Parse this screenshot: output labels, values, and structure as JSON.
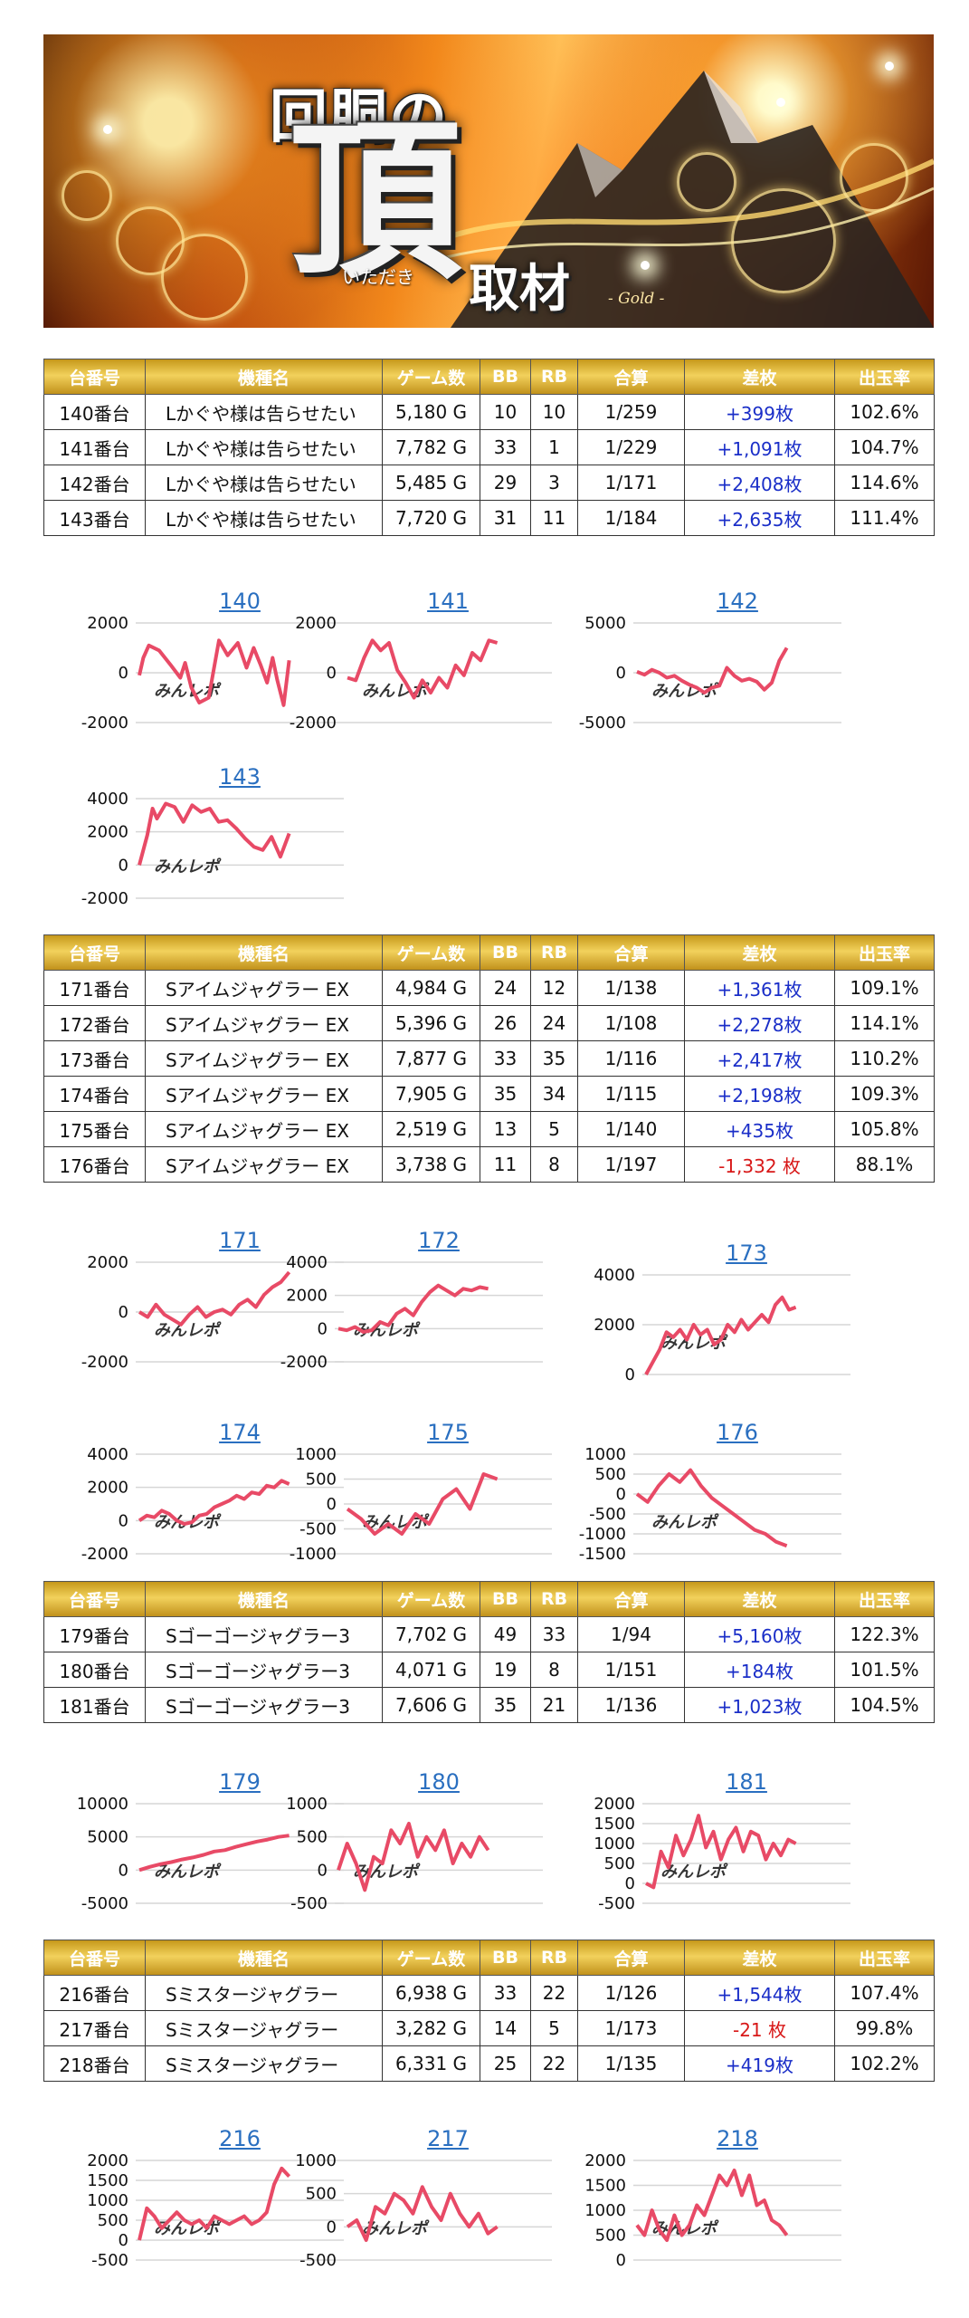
{
  "banner": {
    "line1": "回胴の",
    "main_char": "頂",
    "ruby": "いただき",
    "line2": "取材",
    "tag": "- Gold -"
  },
  "watermark": "みんレポ",
  "colors": {
    "header_gold": "#d9b43a",
    "positive": "#1a2ec8",
    "negative": "#d81818",
    "line": "#e84a66",
    "link": "#2a6fc0"
  },
  "table_headers": [
    "台番号",
    "機種名",
    "ゲーム数",
    "BB",
    "RB",
    "合算",
    "差枚",
    "出玉率"
  ],
  "groups": [
    {
      "rows": [
        {
          "no": "140番台",
          "name": "Lかぐや様は告らせたい",
          "games": "5,180 G",
          "bb": "10",
          "rb": "10",
          "total": "1/259",
          "diff": "+399枚",
          "rate": "102.6%"
        },
        {
          "no": "141番台",
          "name": "Lかぐや様は告らせたい",
          "games": "7,782 G",
          "bb": "33",
          "rb": "1",
          "total": "1/229",
          "diff": "+1,091枚",
          "rate": "104.7%"
        },
        {
          "no": "142番台",
          "name": "Lかぐや様は告らせたい",
          "games": "5,485 G",
          "bb": "29",
          "rb": "3",
          "total": "1/171",
          "diff": "+2,408枚",
          "rate": "114.6%"
        },
        {
          "no": "143番台",
          "name": "Lかぐや様は告らせたい",
          "games": "7,720 G",
          "bb": "31",
          "rb": "11",
          "total": "1/184",
          "diff": "+2,635枚",
          "rate": "111.4%"
        }
      ]
    },
    {
      "rows": [
        {
          "no": "171番台",
          "name": "Sアイムジャグラー EX",
          "games": "4,984 G",
          "bb": "24",
          "rb": "12",
          "total": "1/138",
          "diff": "+1,361枚",
          "rate": "109.1%"
        },
        {
          "no": "172番台",
          "name": "Sアイムジャグラー EX",
          "games": "5,396 G",
          "bb": "26",
          "rb": "24",
          "total": "1/108",
          "diff": "+2,278枚",
          "rate": "114.1%"
        },
        {
          "no": "173番台",
          "name": "Sアイムジャグラー EX",
          "games": "7,877 G",
          "bb": "33",
          "rb": "35",
          "total": "1/116",
          "diff": "+2,417枚",
          "rate": "110.2%"
        },
        {
          "no": "174番台",
          "name": "Sアイムジャグラー EX",
          "games": "7,905 G",
          "bb": "35",
          "rb": "34",
          "total": "1/115",
          "diff": "+2,198枚",
          "rate": "109.3%"
        },
        {
          "no": "175番台",
          "name": "Sアイムジャグラー EX",
          "games": "2,519 G",
          "bb": "13",
          "rb": "5",
          "total": "1/140",
          "diff": "+435枚",
          "rate": "105.8%"
        },
        {
          "no": "176番台",
          "name": "Sアイムジャグラー EX",
          "games": "3,738 G",
          "bb": "11",
          "rb": "8",
          "total": "1/197",
          "diff": "-1,332 枚",
          "rate": "88.1%"
        }
      ]
    },
    {
      "rows": [
        {
          "no": "179番台",
          "name": "Sゴーゴージャグラー3",
          "games": "7,702 G",
          "bb": "49",
          "rb": "33",
          "total": "1/94",
          "diff": "+5,160枚",
          "rate": "122.3%"
        },
        {
          "no": "180番台",
          "name": "Sゴーゴージャグラー3",
          "games": "4,071 G",
          "bb": "19",
          "rb": "8",
          "total": "1/151",
          "diff": "+184枚",
          "rate": "101.5%"
        },
        {
          "no": "181番台",
          "name": "Sゴーゴージャグラー3",
          "games": "7,606 G",
          "bb": "35",
          "rb": "21",
          "total": "1/136",
          "diff": "+1,023枚",
          "rate": "104.5%"
        }
      ]
    },
    {
      "rows": [
        {
          "no": "216番台",
          "name": "Sミスタージャグラー",
          "games": "6,938 G",
          "bb": "33",
          "rb": "22",
          "total": "1/126",
          "diff": "+1,544枚",
          "rate": "107.4%"
        },
        {
          "no": "217番台",
          "name": "Sミスタージャグラー",
          "games": "3,282 G",
          "bb": "14",
          "rb": "5",
          "total": "1/173",
          "diff": "-21 枚",
          "rate": "99.8%"
        },
        {
          "no": "218番台",
          "name": "Sミスタージャグラー",
          "games": "6,331 G",
          "bb": "25",
          "rb": "22",
          "total": "1/135",
          "diff": "+419枚",
          "rate": "102.2%"
        }
      ]
    }
  ],
  "chart_data": [
    {
      "type": "line",
      "title": "140",
      "ylim": [
        -2000,
        2000
      ],
      "yticks": [
        2000,
        0,
        -2000
      ],
      "grid": true,
      "x": [
        0,
        0.5,
        1.2,
        2.5,
        4,
        5.2,
        5.8,
        6.6,
        7.6,
        8.8,
        10.1,
        11.2,
        12.5,
        13.6,
        14.5,
        15.4,
        16.2,
        16.9,
        17.5,
        18.3,
        19
      ],
      "values": [
        -100,
        600,
        1100,
        900,
        300,
        -200,
        400,
        -600,
        -1200,
        -1000,
        1300,
        700,
        1200,
        200,
        1000,
        300,
        -400,
        600,
        -300,
        -1300,
        500
      ]
    },
    {
      "type": "line",
      "title": "141",
      "ylim": [
        -2000,
        2000
      ],
      "yticks": [
        2000,
        0,
        -2000
      ],
      "grid": true,
      "x": [
        0,
        1,
        2,
        3,
        4,
        5,
        6,
        7,
        8,
        9,
        10,
        11,
        12,
        13,
        14,
        15,
        16,
        17,
        18
      ],
      "values": [
        -200,
        -300,
        600,
        1300,
        900,
        1200,
        100,
        -400,
        -1000,
        -300,
        -800,
        -200,
        -600,
        300,
        -100,
        800,
        500,
        1300,
        1200
      ]
    },
    {
      "type": "line",
      "title": "142",
      "ylim": [
        -5000,
        5000
      ],
      "yticks": [
        5000,
        0,
        -5000
      ],
      "grid": true,
      "x": [
        0,
        1,
        2,
        3,
        4,
        5,
        6,
        7,
        8,
        9,
        10,
        11,
        12,
        13,
        14,
        15,
        16,
        17,
        18,
        19,
        20
      ],
      "values": [
        100,
        -200,
        300,
        0,
        -500,
        -300,
        -800,
        -1200,
        -1500,
        -2000,
        -1500,
        -1300,
        500,
        -300,
        -800,
        -600,
        -900,
        -1700,
        -1000,
        1200,
        2500
      ]
    },
    {
      "type": "line",
      "title": "143",
      "ylim": [
        -2000,
        4000
      ],
      "yticks": [
        4000,
        2000,
        0,
        -2000
      ],
      "grid": true,
      "x": [
        0,
        0.4,
        0.9,
        1.5,
        2,
        3,
        4,
        5,
        6,
        7,
        8,
        9,
        10,
        11,
        12,
        13,
        14,
        15,
        16,
        17
      ],
      "values": [
        0,
        800,
        1800,
        3400,
        2800,
        3700,
        3500,
        2600,
        3600,
        3200,
        3400,
        2600,
        2700,
        2200,
        1600,
        1100,
        900,
        1700,
        500,
        1900
      ]
    },
    {
      "type": "line",
      "title": "171",
      "ylim": [
        -2000,
        2000
      ],
      "yticks": [
        2000,
        0,
        -2000
      ],
      "grid": true,
      "x": [
        0,
        1,
        2,
        3,
        4,
        5,
        6,
        7,
        8,
        9,
        10,
        11,
        12,
        13,
        14,
        15,
        16,
        17,
        18
      ],
      "values": [
        0,
        -200,
        300,
        -100,
        -300,
        -500,
        -100,
        200,
        -200,
        0,
        100,
        -100,
        300,
        500,
        200,
        700,
        1000,
        1200,
        1600
      ]
    },
    {
      "type": "line",
      "title": "172",
      "ylim": [
        -2000,
        4000
      ],
      "yticks": [
        4000,
        2000,
        0,
        -2000
      ],
      "grid": true,
      "x": [
        0,
        1,
        2,
        3,
        4,
        5,
        6,
        7,
        8,
        9,
        10,
        11,
        12,
        13,
        14,
        15,
        16,
        17,
        18
      ],
      "values": [
        0,
        -100,
        100,
        -200,
        -100,
        400,
        200,
        900,
        1200,
        800,
        1600,
        2200,
        2600,
        2300,
        2000,
        2400,
        2300,
        2500,
        2400
      ]
    },
    {
      "type": "line",
      "title": "173",
      "ylim": [
        0,
        4000
      ],
      "yticks": [
        4000,
        2000,
        0
      ],
      "grid": true,
      "x": [
        0,
        1,
        2,
        3,
        4,
        5,
        6,
        7,
        8,
        9,
        10,
        11,
        12,
        13,
        14,
        15,
        16,
        17,
        18,
        19,
        20,
        21,
        22
      ],
      "values": [
        0,
        500,
        1000,
        1700,
        1500,
        1800,
        1400,
        2000,
        1600,
        1800,
        1200,
        1400,
        2000,
        1700,
        2200,
        1800,
        2100,
        2400,
        2100,
        2800,
        3100,
        2600,
        2700
      ]
    },
    {
      "type": "line",
      "title": "174",
      "ylim": [
        -2000,
        4000
      ],
      "yticks": [
        4000,
        2000,
        0,
        -2000
      ],
      "grid": true,
      "x": [
        0,
        1,
        2,
        3,
        4,
        5,
        6,
        7,
        8,
        9,
        10,
        11,
        12,
        13,
        14,
        15,
        16,
        17,
        18,
        19,
        20
      ],
      "values": [
        0,
        300,
        200,
        600,
        400,
        0,
        -200,
        -100,
        300,
        400,
        800,
        1000,
        1200,
        1500,
        1300,
        1700,
        1600,
        2100,
        2000,
        2400,
        2200
      ]
    },
    {
      "type": "line",
      "title": "175",
      "ylim": [
        -1000,
        1000
      ],
      "yticks": [
        1000,
        500,
        0,
        -500,
        -1000
      ],
      "grid": true,
      "x": [
        0,
        1,
        2,
        3,
        4,
        5,
        6,
        7,
        8,
        9,
        10,
        11
      ],
      "values": [
        -100,
        -300,
        -600,
        -400,
        -600,
        -200,
        -400,
        100,
        300,
        -100,
        600,
        500
      ]
    },
    {
      "type": "line",
      "title": "176",
      "ylim": [
        -1500,
        1000
      ],
      "yticks": [
        1000,
        500,
        0,
        -500,
        -1000,
        -1500
      ],
      "grid": true,
      "x": [
        0,
        1,
        2,
        3,
        4,
        5,
        6,
        7,
        8,
        9,
        10,
        11,
        12,
        13,
        14
      ],
      "values": [
        0,
        -200,
        200,
        500,
        300,
        600,
        200,
        -100,
        -300,
        -500,
        -700,
        -900,
        -1000,
        -1200,
        -1300
      ]
    },
    {
      "type": "line",
      "title": "179",
      "ylim": [
        -5000,
        10000
      ],
      "yticks": [
        10000,
        5000,
        0,
        -5000
      ],
      "grid": true,
      "x": [
        0,
        2,
        4,
        6,
        8,
        10,
        12,
        14,
        16,
        18,
        20,
        22,
        24,
        26,
        28
      ],
      "values": [
        0,
        500,
        900,
        1200,
        1600,
        1900,
        2300,
        2800,
        3000,
        3500,
        3900,
        4300,
        4600,
        5000,
        5200
      ]
    },
    {
      "type": "line",
      "title": "180",
      "ylim": [
        -500,
        1000
      ],
      "yticks": [
        1000,
        500,
        0,
        -500
      ],
      "grid": true,
      "x": [
        0,
        1,
        2,
        3,
        4,
        5,
        6,
        7,
        8,
        9,
        10,
        11,
        12,
        13,
        14,
        15,
        16,
        17
      ],
      "values": [
        0,
        400,
        100,
        -300,
        200,
        100,
        600,
        400,
        700,
        200,
        500,
        300,
        600,
        100,
        400,
        200,
        500,
        300
      ]
    },
    {
      "type": "line",
      "title": "181",
      "ylim": [
        -500,
        2000
      ],
      "yticks": [
        2000,
        1500,
        1000,
        500,
        0,
        -500
      ],
      "grid": true,
      "x": [
        0,
        1,
        2,
        3,
        4,
        5,
        6,
        7,
        8,
        9,
        10,
        11,
        12,
        13,
        14,
        15,
        16,
        17,
        18,
        19,
        20
      ],
      "values": [
        0,
        -100,
        800,
        400,
        1200,
        700,
        1100,
        1700,
        900,
        1300,
        600,
        1100,
        1400,
        800,
        1300,
        1200,
        600,
        1000,
        700,
        1100,
        1000
      ]
    },
    {
      "type": "line",
      "title": "216",
      "ylim": [
        -500,
        2000
      ],
      "yticks": [
        2000,
        1500,
        1000,
        500,
        0,
        -500
      ],
      "grid": true,
      "x": [
        0,
        1,
        2,
        3,
        4,
        5,
        6,
        7,
        8,
        9,
        10,
        11,
        12,
        13,
        14,
        15,
        16,
        17,
        18,
        19,
        20
      ],
      "values": [
        0,
        800,
        600,
        300,
        500,
        700,
        500,
        400,
        500,
        300,
        600,
        500,
        400,
        500,
        600,
        400,
        500,
        700,
        1400,
        1800,
        1600
      ]
    },
    {
      "type": "line",
      "title": "217",
      "ylim": [
        -500,
        1000
      ],
      "yticks": [
        1000,
        500,
        0,
        -500
      ],
      "grid": true,
      "x": [
        0,
        1,
        2,
        3,
        4,
        5,
        6,
        7,
        8,
        9,
        10,
        11,
        12,
        13,
        14,
        15,
        16
      ],
      "values": [
        0,
        100,
        -200,
        300,
        200,
        500,
        400,
        200,
        600,
        300,
        100,
        500,
        200,
        0,
        200,
        -100,
        0
      ]
    },
    {
      "type": "line",
      "title": "218",
      "ylim": [
        0,
        2000
      ],
      "yticks": [
        2000,
        1500,
        1000,
        500,
        0
      ],
      "grid": true,
      "x": [
        0,
        1,
        2,
        3,
        4,
        5,
        6,
        7,
        8,
        9,
        10,
        11,
        12,
        13,
        14,
        15,
        16,
        17,
        18,
        19,
        20
      ],
      "values": [
        700,
        500,
        1000,
        600,
        400,
        900,
        500,
        700,
        1100,
        900,
        1300,
        1700,
        1500,
        1800,
        1300,
        1700,
        1100,
        1200,
        800,
        700,
        500
      ]
    }
  ]
}
